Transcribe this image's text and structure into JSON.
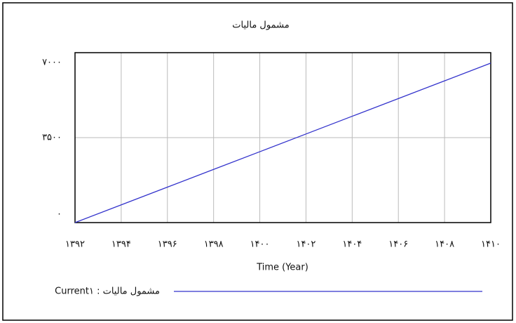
{
  "chart_data": {
    "type": "line",
    "title": "مشمول مالیات",
    "x": [
      1392,
      1394,
      1396,
      1398,
      1400,
      1402,
      1404,
      1406,
      1408,
      1410
    ],
    "series": [
      {
        "name": "Current۱ : مشمول مالیات",
        "color": "#3333cc",
        "values": [
          0,
          730,
          1460,
          2190,
          2920,
          3650,
          4380,
          5110,
          5840,
          6570
        ]
      }
    ],
    "xlabel": "Time (Year)",
    "xlim": [
      1392,
      1410
    ],
    "xticks": [
      {
        "value": 1392,
        "label": "۱۳۹۲"
      },
      {
        "value": 1394,
        "label": "۱۳۹۴"
      },
      {
        "value": 1396,
        "label": "۱۳۹۶"
      },
      {
        "value": 1398,
        "label": "۱۳۹۸"
      },
      {
        "value": 1400,
        "label": "۱۴۰۰"
      },
      {
        "value": 1402,
        "label": "۱۴۰۲"
      },
      {
        "value": 1404,
        "label": "۱۴۰۴"
      },
      {
        "value": 1406,
        "label": "۱۴۰۶"
      },
      {
        "value": 1408,
        "label": "۱۴۰۸"
      },
      {
        "value": 1410,
        "label": "۱۴۱۰"
      }
    ],
    "ylim": [
      0,
      7000
    ],
    "yticks": [
      {
        "value": 0,
        "label": "۰"
      },
      {
        "value": 3500,
        "label": "۳۵۰۰"
      },
      {
        "value": 7000,
        "label": "۷۰۰۰"
      }
    ],
    "grid": true
  }
}
